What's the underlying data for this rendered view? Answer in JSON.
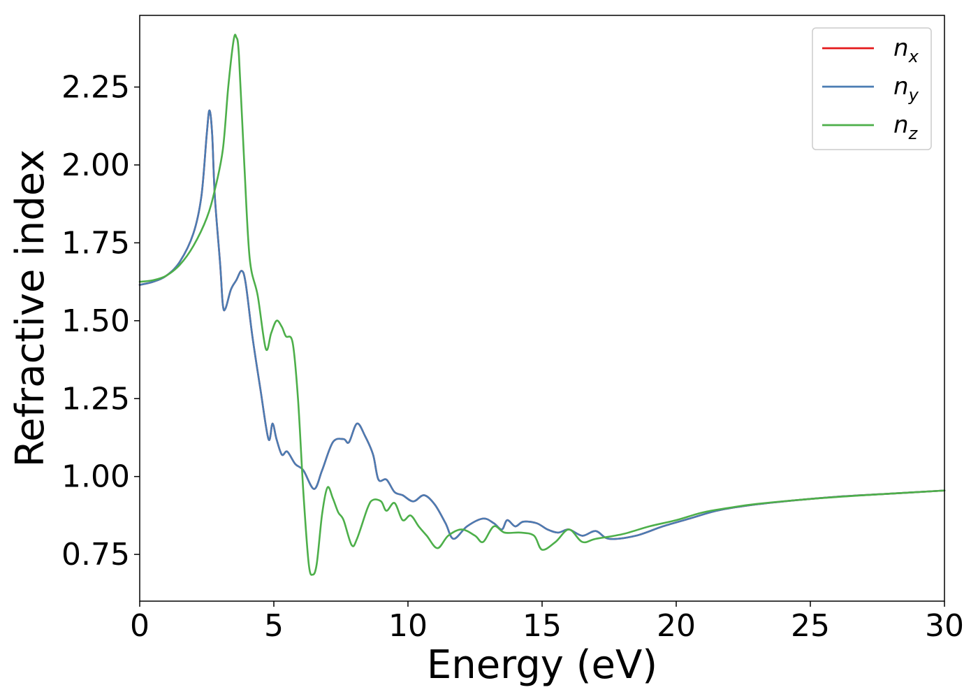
{
  "chart_data": {
    "type": "line",
    "title": "",
    "xlabel": "Energy (eV)",
    "ylabel": "Refractive index",
    "xlim": [
      0,
      30
    ],
    "ylim": [
      0.6,
      2.48
    ],
    "xticks": [
      0,
      5,
      10,
      15,
      20,
      25,
      30
    ],
    "yticks": [
      0.75,
      1.0,
      1.25,
      1.5,
      1.75,
      2.0,
      2.25
    ],
    "ytick_labels": [
      "0.75",
      "1.00",
      "1.25",
      "1.50",
      "1.75",
      "2.00",
      "2.25"
    ],
    "grid": false,
    "legend_position": "top-right",
    "series": [
      {
        "name": "n",
        "subscript": "x",
        "color": "#e41a1c",
        "points": [
          [
            0,
            1.615
          ],
          [
            0.5,
            1.625
          ],
          [
            1,
            1.645
          ],
          [
            1.5,
            1.69
          ],
          [
            2,
            1.78
          ],
          [
            2.3,
            1.9
          ],
          [
            2.5,
            2.1
          ],
          [
            2.6,
            2.175
          ],
          [
            2.7,
            2.1
          ],
          [
            2.8,
            1.9
          ],
          [
            3,
            1.68
          ],
          [
            3.1,
            1.55
          ],
          [
            3.2,
            1.54
          ],
          [
            3.4,
            1.6
          ],
          [
            3.6,
            1.63
          ],
          [
            3.8,
            1.66
          ],
          [
            3.95,
            1.62
          ],
          [
            4.2,
            1.45
          ],
          [
            4.5,
            1.28
          ],
          [
            4.8,
            1.12
          ],
          [
            4.95,
            1.17
          ],
          [
            5.1,
            1.12
          ],
          [
            5.3,
            1.07
          ],
          [
            5.5,
            1.08
          ],
          [
            5.8,
            1.04
          ],
          [
            6.1,
            1.02
          ],
          [
            6.5,
            0.96
          ],
          [
            6.8,
            1.02
          ],
          [
            7.2,
            1.11
          ],
          [
            7.6,
            1.12
          ],
          [
            7.8,
            1.11
          ],
          [
            8.1,
            1.17
          ],
          [
            8.4,
            1.13
          ],
          [
            8.7,
            1.07
          ],
          [
            8.9,
            0.99
          ],
          [
            9.2,
            0.99
          ],
          [
            9.5,
            0.95
          ],
          [
            9.8,
            0.94
          ],
          [
            10.2,
            0.92
          ],
          [
            10.6,
            0.94
          ],
          [
            11,
            0.91
          ],
          [
            11.4,
            0.85
          ],
          [
            11.7,
            0.8
          ],
          [
            12.2,
            0.84
          ],
          [
            12.8,
            0.865
          ],
          [
            13.2,
            0.85
          ],
          [
            13.5,
            0.83
          ],
          [
            13.7,
            0.86
          ],
          [
            14,
            0.84
          ],
          [
            14.3,
            0.855
          ],
          [
            14.8,
            0.85
          ],
          [
            15.2,
            0.83
          ],
          [
            15.6,
            0.82
          ],
          [
            16,
            0.83
          ],
          [
            16.5,
            0.81
          ],
          [
            17,
            0.825
          ],
          [
            17.5,
            0.8
          ],
          [
            18.5,
            0.81
          ],
          [
            19.5,
            0.84
          ],
          [
            20.5,
            0.865
          ],
          [
            21.5,
            0.89
          ],
          [
            22.5,
            0.905
          ],
          [
            24,
            0.92
          ],
          [
            26,
            0.935
          ],
          [
            28,
            0.945
          ],
          [
            30,
            0.955
          ]
        ]
      },
      {
        "name": "n",
        "subscript": "y",
        "color": "#4a7cb3",
        "points": [
          [
            0,
            1.615
          ],
          [
            0.5,
            1.625
          ],
          [
            1,
            1.645
          ],
          [
            1.5,
            1.69
          ],
          [
            2,
            1.78
          ],
          [
            2.3,
            1.9
          ],
          [
            2.5,
            2.1
          ],
          [
            2.6,
            2.175
          ],
          [
            2.7,
            2.1
          ],
          [
            2.8,
            1.9
          ],
          [
            3,
            1.68
          ],
          [
            3.1,
            1.55
          ],
          [
            3.2,
            1.54
          ],
          [
            3.4,
            1.6
          ],
          [
            3.6,
            1.63
          ],
          [
            3.8,
            1.66
          ],
          [
            3.95,
            1.62
          ],
          [
            4.2,
            1.45
          ],
          [
            4.5,
            1.28
          ],
          [
            4.8,
            1.12
          ],
          [
            4.95,
            1.17
          ],
          [
            5.1,
            1.12
          ],
          [
            5.3,
            1.07
          ],
          [
            5.5,
            1.08
          ],
          [
            5.8,
            1.04
          ],
          [
            6.1,
            1.02
          ],
          [
            6.5,
            0.96
          ],
          [
            6.8,
            1.02
          ],
          [
            7.2,
            1.11
          ],
          [
            7.6,
            1.12
          ],
          [
            7.8,
            1.11
          ],
          [
            8.1,
            1.17
          ],
          [
            8.4,
            1.13
          ],
          [
            8.7,
            1.07
          ],
          [
            8.9,
            0.99
          ],
          [
            9.2,
            0.99
          ],
          [
            9.5,
            0.95
          ],
          [
            9.8,
            0.94
          ],
          [
            10.2,
            0.92
          ],
          [
            10.6,
            0.94
          ],
          [
            11,
            0.91
          ],
          [
            11.4,
            0.85
          ],
          [
            11.7,
            0.8
          ],
          [
            12.2,
            0.84
          ],
          [
            12.8,
            0.865
          ],
          [
            13.2,
            0.85
          ],
          [
            13.5,
            0.83
          ],
          [
            13.7,
            0.86
          ],
          [
            14,
            0.84
          ],
          [
            14.3,
            0.855
          ],
          [
            14.8,
            0.85
          ],
          [
            15.2,
            0.83
          ],
          [
            15.6,
            0.82
          ],
          [
            16,
            0.83
          ],
          [
            16.5,
            0.81
          ],
          [
            17,
            0.825
          ],
          [
            17.5,
            0.8
          ],
          [
            18.5,
            0.81
          ],
          [
            19.5,
            0.84
          ],
          [
            20.5,
            0.865
          ],
          [
            21.5,
            0.89
          ],
          [
            22.5,
            0.905
          ],
          [
            24,
            0.92
          ],
          [
            26,
            0.935
          ],
          [
            28,
            0.945
          ],
          [
            30,
            0.955
          ]
        ]
      },
      {
        "name": "n",
        "subscript": "z",
        "color": "#4daf4a",
        "points": [
          [
            0,
            1.625
          ],
          [
            0.5,
            1.63
          ],
          [
            1,
            1.645
          ],
          [
            1.5,
            1.68
          ],
          [
            2,
            1.74
          ],
          [
            2.5,
            1.83
          ],
          [
            2.8,
            1.92
          ],
          [
            3.1,
            2.05
          ],
          [
            3.3,
            2.25
          ],
          [
            3.5,
            2.4
          ],
          [
            3.6,
            2.41
          ],
          [
            3.7,
            2.35
          ],
          [
            3.9,
            2.0
          ],
          [
            4.1,
            1.7
          ],
          [
            4.4,
            1.58
          ],
          [
            4.7,
            1.41
          ],
          [
            4.9,
            1.46
          ],
          [
            5.1,
            1.5
          ],
          [
            5.3,
            1.48
          ],
          [
            5.45,
            1.45
          ],
          [
            5.7,
            1.43
          ],
          [
            5.9,
            1.25
          ],
          [
            6.1,
            0.95
          ],
          [
            6.3,
            0.72
          ],
          [
            6.45,
            0.685
          ],
          [
            6.6,
            0.72
          ],
          [
            6.8,
            0.88
          ],
          [
            7,
            0.965
          ],
          [
            7.2,
            0.93
          ],
          [
            7.4,
            0.885
          ],
          [
            7.6,
            0.86
          ],
          [
            7.9,
            0.78
          ],
          [
            8.1,
            0.8
          ],
          [
            8.5,
            0.9
          ],
          [
            8.7,
            0.925
          ],
          [
            9,
            0.92
          ],
          [
            9.2,
            0.89
          ],
          [
            9.5,
            0.915
          ],
          [
            9.8,
            0.86
          ],
          [
            10.1,
            0.875
          ],
          [
            10.4,
            0.84
          ],
          [
            10.7,
            0.81
          ],
          [
            11.1,
            0.77
          ],
          [
            11.5,
            0.81
          ],
          [
            12,
            0.83
          ],
          [
            12.5,
            0.81
          ],
          [
            12.8,
            0.79
          ],
          [
            13.2,
            0.84
          ],
          [
            13.6,
            0.82
          ],
          [
            14.2,
            0.82
          ],
          [
            14.7,
            0.81
          ],
          [
            15,
            0.765
          ],
          [
            15.5,
            0.79
          ],
          [
            16,
            0.83
          ],
          [
            16.5,
            0.79
          ],
          [
            17,
            0.8
          ],
          [
            18,
            0.815
          ],
          [
            19,
            0.84
          ],
          [
            20,
            0.86
          ],
          [
            21,
            0.885
          ],
          [
            22,
            0.9
          ],
          [
            23,
            0.912
          ],
          [
            25,
            0.928
          ],
          [
            27,
            0.94
          ],
          [
            30,
            0.955
          ]
        ]
      }
    ]
  }
}
